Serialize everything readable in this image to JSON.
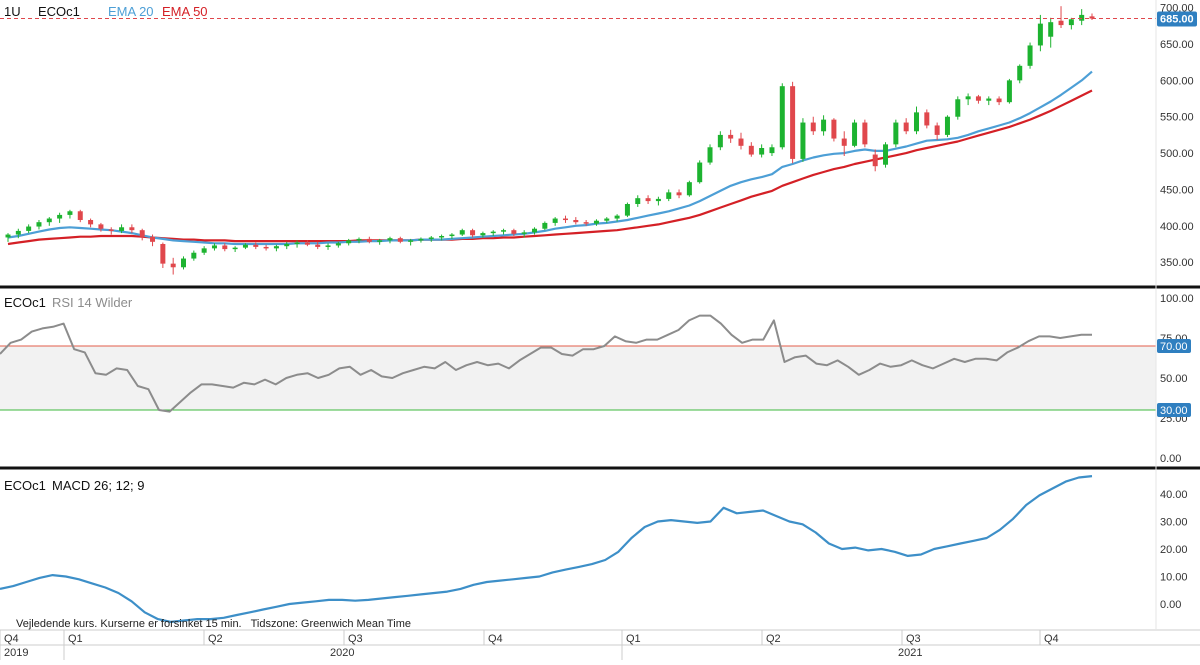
{
  "header": {
    "interval": "1U",
    "symbol": "ECOc1",
    "ema20_label": "EMA 20",
    "ema50_label": "EMA 50"
  },
  "colors": {
    "up": "#1db330",
    "down": "#e0474c",
    "ema20": "#4d9fd6",
    "ema50": "#d42026",
    "rsi_line": "#8c8c8c",
    "rsi_upper": "#e35d4b",
    "rsi_lower": "#3cb83c",
    "macd": "#3d8fc8",
    "price_badge": "#2f7fc0",
    "separator": "#111111"
  },
  "rsi_panel": {
    "symbol": "ECOc1",
    "title": "RSI 14 Wilder"
  },
  "macd_panel": {
    "symbol": "ECOc1",
    "title": "MACD 26; 12; 9"
  },
  "footer_note": "Vejledende kurs. Kurserne er forsinket 15 min.   Tidszone: Greenwich Mean Time",
  "time_axis": {
    "quarters": [
      "Q4",
      "Q1",
      "Q2",
      "Q3",
      "Q4",
      "Q1",
      "Q2",
      "Q3",
      "Q4"
    ],
    "years": [
      "2019",
      "2020",
      "2021"
    ]
  },
  "price_panel": {
    "current_price_label": "685.00",
    "current_price": 685,
    "y_ticks": [
      "350.00",
      "400.00",
      "450.00",
      "500.00",
      "550.00",
      "600.00",
      "650.00",
      "700.00"
    ]
  },
  "rsi_axis": {
    "ticks": [
      "0.00",
      "25.00",
      "50.00",
      "75.00",
      "100.00"
    ],
    "upper_label": "70.00",
    "lower_label": "30.00",
    "upper": 70,
    "lower": 30
  },
  "macd_axis": {
    "ticks": [
      "0.00",
      "10.00",
      "20.00",
      "30.00",
      "40.00"
    ]
  },
  "chart_data": [
    {
      "type": "candlestick",
      "interval": "1 week",
      "ylim": [
        320,
        705
      ],
      "candles": [
        {
          "o": 384,
          "h": 390,
          "l": 378,
          "c": 388
        },
        {
          "o": 388,
          "h": 396,
          "l": 383,
          "c": 393
        },
        {
          "o": 393,
          "h": 402,
          "l": 390,
          "c": 399
        },
        {
          "o": 399,
          "h": 408,
          "l": 395,
          "c": 405
        },
        {
          "o": 405,
          "h": 412,
          "l": 400,
          "c": 410
        },
        {
          "o": 410,
          "h": 418,
          "l": 404,
          "c": 415
        },
        {
          "o": 415,
          "h": 422,
          "l": 410,
          "c": 420
        },
        {
          "o": 420,
          "h": 422,
          "l": 405,
          "c": 408
        },
        {
          "o": 408,
          "h": 410,
          "l": 398,
          "c": 402
        },
        {
          "o": 402,
          "h": 404,
          "l": 392,
          "c": 396
        },
        {
          "o": 395,
          "h": 398,
          "l": 388,
          "c": 393
        },
        {
          "o": 393,
          "h": 402,
          "l": 390,
          "c": 398
        },
        {
          "o": 398,
          "h": 402,
          "l": 390,
          "c": 394
        },
        {
          "o": 394,
          "h": 396,
          "l": 380,
          "c": 385
        },
        {
          "o": 385,
          "h": 388,
          "l": 372,
          "c": 378
        },
        {
          "o": 375,
          "h": 377,
          "l": 342,
          "c": 348
        },
        {
          "o": 348,
          "h": 356,
          "l": 333,
          "c": 343
        },
        {
          "o": 343,
          "h": 358,
          "l": 340,
          "c": 355
        },
        {
          "o": 355,
          "h": 366,
          "l": 352,
          "c": 363
        },
        {
          "o": 363,
          "h": 372,
          "l": 360,
          "c": 369
        },
        {
          "o": 369,
          "h": 376,
          "l": 366,
          "c": 373
        },
        {
          "o": 373,
          "h": 376,
          "l": 365,
          "c": 368
        },
        {
          "o": 368,
          "h": 372,
          "l": 364,
          "c": 370
        },
        {
          "o": 370,
          "h": 376,
          "l": 368,
          "c": 374
        },
        {
          "o": 374,
          "h": 377,
          "l": 368,
          "c": 371
        },
        {
          "o": 371,
          "h": 374,
          "l": 366,
          "c": 369
        },
        {
          "o": 369,
          "h": 374,
          "l": 365,
          "c": 372
        },
        {
          "o": 372,
          "h": 378,
          "l": 368,
          "c": 375
        },
        {
          "o": 375,
          "h": 380,
          "l": 370,
          "c": 377
        },
        {
          "o": 377,
          "h": 380,
          "l": 372,
          "c": 374
        },
        {
          "o": 374,
          "h": 378,
          "l": 368,
          "c": 371
        },
        {
          "o": 371,
          "h": 376,
          "l": 367,
          "c": 373
        },
        {
          "o": 373,
          "h": 378,
          "l": 370,
          "c": 376
        },
        {
          "o": 376,
          "h": 382,
          "l": 373,
          "c": 380
        },
        {
          "o": 380,
          "h": 384,
          "l": 376,
          "c": 382
        },
        {
          "o": 382,
          "h": 385,
          "l": 376,
          "c": 378
        },
        {
          "o": 378,
          "h": 382,
          "l": 374,
          "c": 380
        },
        {
          "o": 380,
          "h": 385,
          "l": 376,
          "c": 383
        },
        {
          "o": 383,
          "h": 385,
          "l": 376,
          "c": 378
        },
        {
          "o": 378,
          "h": 382,
          "l": 373,
          "c": 380
        },
        {
          "o": 380,
          "h": 384,
          "l": 377,
          "c": 382
        },
        {
          "o": 382,
          "h": 386,
          "l": 378,
          "c": 384
        },
        {
          "o": 384,
          "h": 388,
          "l": 380,
          "c": 386
        },
        {
          "o": 386,
          "h": 390,
          "l": 382,
          "c": 388
        },
        {
          "o": 388,
          "h": 396,
          "l": 386,
          "c": 394
        },
        {
          "o": 394,
          "h": 396,
          "l": 384,
          "c": 387
        },
        {
          "o": 387,
          "h": 392,
          "l": 384,
          "c": 390
        },
        {
          "o": 390,
          "h": 394,
          "l": 386,
          "c": 392
        },
        {
          "o": 392,
          "h": 396,
          "l": 388,
          "c": 394
        },
        {
          "o": 394,
          "h": 396,
          "l": 386,
          "c": 389
        },
        {
          "o": 389,
          "h": 394,
          "l": 384,
          "c": 391
        },
        {
          "o": 391,
          "h": 398,
          "l": 388,
          "c": 396
        },
        {
          "o": 396,
          "h": 406,
          "l": 394,
          "c": 404
        },
        {
          "o": 404,
          "h": 412,
          "l": 400,
          "c": 410
        },
        {
          "o": 410,
          "h": 414,
          "l": 404,
          "c": 408
        },
        {
          "o": 408,
          "h": 412,
          "l": 402,
          "c": 405
        },
        {
          "o": 405,
          "h": 408,
          "l": 400,
          "c": 403
        },
        {
          "o": 403,
          "h": 409,
          "l": 400,
          "c": 407
        },
        {
          "o": 407,
          "h": 412,
          "l": 404,
          "c": 410
        },
        {
          "o": 410,
          "h": 416,
          "l": 406,
          "c": 414
        },
        {
          "o": 414,
          "h": 432,
          "l": 412,
          "c": 430
        },
        {
          "o": 430,
          "h": 442,
          "l": 426,
          "c": 438
        },
        {
          "o": 438,
          "h": 442,
          "l": 430,
          "c": 434
        },
        {
          "o": 434,
          "h": 440,
          "l": 428,
          "c": 437
        },
        {
          "o": 437,
          "h": 450,
          "l": 434,
          "c": 446
        },
        {
          "o": 446,
          "h": 450,
          "l": 438,
          "c": 442
        },
        {
          "o": 442,
          "h": 462,
          "l": 440,
          "c": 460
        },
        {
          "o": 460,
          "h": 490,
          "l": 458,
          "c": 487
        },
        {
          "o": 487,
          "h": 512,
          "l": 484,
          "c": 508
        },
        {
          "o": 508,
          "h": 530,
          "l": 504,
          "c": 525
        },
        {
          "o": 525,
          "h": 532,
          "l": 514,
          "c": 520
        },
        {
          "o": 520,
          "h": 528,
          "l": 505,
          "c": 510
        },
        {
          "o": 510,
          "h": 515,
          "l": 495,
          "c": 498
        },
        {
          "o": 498,
          "h": 512,
          "l": 494,
          "c": 507
        },
        {
          "o": 500,
          "h": 512,
          "l": 496,
          "c": 508
        },
        {
          "o": 508,
          "h": 596,
          "l": 505,
          "c": 592
        },
        {
          "o": 592,
          "h": 598,
          "l": 486,
          "c": 492
        },
        {
          "o": 492,
          "h": 548,
          "l": 488,
          "c": 542
        },
        {
          "o": 542,
          "h": 550,
          "l": 525,
          "c": 530
        },
        {
          "o": 530,
          "h": 552,
          "l": 524,
          "c": 546
        },
        {
          "o": 546,
          "h": 548,
          "l": 516,
          "c": 520
        },
        {
          "o": 520,
          "h": 530,
          "l": 496,
          "c": 510
        },
        {
          "o": 510,
          "h": 546,
          "l": 508,
          "c": 542
        },
        {
          "o": 542,
          "h": 546,
          "l": 508,
          "c": 512
        },
        {
          "o": 498,
          "h": 505,
          "l": 475,
          "c": 482
        },
        {
          "o": 484,
          "h": 515,
          "l": 480,
          "c": 512
        },
        {
          "o": 512,
          "h": 546,
          "l": 508,
          "c": 542
        },
        {
          "o": 542,
          "h": 548,
          "l": 526,
          "c": 530
        },
        {
          "o": 530,
          "h": 564,
          "l": 526,
          "c": 556
        },
        {
          "o": 556,
          "h": 560,
          "l": 534,
          "c": 538
        },
        {
          "o": 538,
          "h": 542,
          "l": 518,
          "c": 525
        },
        {
          "o": 525,
          "h": 552,
          "l": 522,
          "c": 550
        },
        {
          "o": 550,
          "h": 578,
          "l": 546,
          "c": 574
        },
        {
          "o": 574,
          "h": 582,
          "l": 566,
          "c": 578
        },
        {
          "o": 578,
          "h": 580,
          "l": 568,
          "c": 572
        },
        {
          "o": 572,
          "h": 578,
          "l": 566,
          "c": 575
        },
        {
          "o": 575,
          "h": 578,
          "l": 566,
          "c": 570
        },
        {
          "o": 570,
          "h": 602,
          "l": 568,
          "c": 600
        },
        {
          "o": 600,
          "h": 622,
          "l": 596,
          "c": 620
        },
        {
          "o": 620,
          "h": 652,
          "l": 616,
          "c": 648
        },
        {
          "o": 648,
          "h": 690,
          "l": 640,
          "c": 678
        },
        {
          "o": 660,
          "h": 686,
          "l": 645,
          "c": 680
        },
        {
          "o": 682,
          "h": 702,
          "l": 672,
          "c": 676
        },
        {
          "o": 676,
          "h": 686,
          "l": 670,
          "c": 684
        },
        {
          "o": 682,
          "h": 698,
          "l": 676,
          "c": 690
        },
        {
          "o": 688,
          "h": 692,
          "l": 683,
          "c": 685
        }
      ],
      "ema20": [
        384,
        386,
        389,
        392,
        395,
        397,
        398,
        397,
        396,
        395,
        394,
        392,
        390,
        387,
        384,
        382,
        380,
        379,
        378,
        377,
        376,
        376,
        375,
        375,
        375,
        375,
        375,
        375,
        376,
        376,
        376,
        377,
        377,
        378,
        378,
        379,
        379,
        380,
        380,
        380,
        381,
        381,
        381,
        382,
        383,
        384,
        385,
        386,
        387,
        388,
        389,
        391,
        393,
        396,
        398,
        400,
        401,
        403,
        404,
        406,
        408,
        411,
        414,
        417,
        420,
        424,
        428,
        434,
        441,
        448,
        455,
        460,
        464,
        467,
        471,
        481,
        485,
        490,
        494,
        497,
        499,
        500,
        503,
        505,
        503,
        503,
        506,
        509,
        513,
        517,
        518,
        519,
        521,
        525,
        530,
        534,
        538,
        542,
        548,
        555,
        563,
        571,
        580,
        590,
        600,
        612
      ],
      "ema50": [
        375,
        377,
        379,
        381,
        382,
        383,
        384,
        385,
        385,
        386,
        386,
        386,
        386,
        385,
        384,
        383,
        382,
        381,
        381,
        380,
        380,
        380,
        379,
        379,
        379,
        379,
        379,
        379,
        379,
        379,
        379,
        379,
        379,
        379,
        380,
        380,
        380,
        380,
        380,
        380,
        381,
        381,
        381,
        381,
        382,
        382,
        383,
        383,
        384,
        384,
        385,
        386,
        387,
        388,
        389,
        390,
        391,
        392,
        393,
        394,
        396,
        398,
        400,
        402,
        405,
        408,
        411,
        415,
        420,
        425,
        430,
        435,
        440,
        444,
        448,
        455,
        460,
        465,
        470,
        474,
        478,
        481,
        485,
        488,
        491,
        494,
        497,
        500,
        504,
        507,
        510,
        513,
        516,
        520,
        524,
        528,
        532,
        536,
        541,
        546,
        552,
        558,
        565,
        572,
        579,
        586
      ],
      "last_price": 685
    },
    {
      "type": "line",
      "title": "RSI 14 Wilder",
      "ylim": [
        0,
        100
      ],
      "upper_band": 70,
      "lower_band": 30,
      "values": [
        65,
        72,
        74,
        79,
        81,
        82,
        84,
        68,
        66,
        53,
        52,
        56,
        55,
        45,
        43,
        30,
        29,
        35,
        41,
        46,
        46,
        45,
        44,
        47,
        46,
        49,
        46,
        50,
        52,
        53,
        50,
        52,
        56,
        57,
        52,
        55,
        51,
        50,
        53,
        55,
        57,
        56,
        60,
        55,
        58,
        60,
        58,
        59,
        56,
        61,
        65,
        69,
        69,
        65,
        64,
        68,
        68,
        70,
        76,
        73,
        72,
        74,
        74,
        77,
        80,
        86,
        89,
        89,
        84,
        77,
        72,
        74,
        74,
        86,
        60,
        63,
        64,
        59,
        58,
        61,
        57,
        52,
        55,
        59,
        57,
        58,
        61,
        58,
        56,
        59,
        62,
        60,
        62,
        62,
        61,
        66,
        69,
        73,
        76,
        76,
        75,
        76,
        77,
        77
      ],
      "x_index_start": 0
    },
    {
      "type": "line",
      "title": "MACD 26; 12; 9",
      "ylim": [
        -8,
        48
      ],
      "values": [
        5.5,
        6.5,
        8,
        9.5,
        10.5,
        10,
        9,
        7.5,
        6,
        4,
        1,
        -3,
        -5.5,
        -6.5,
        -6,
        -5.5,
        -5.5,
        -5,
        -4,
        -3,
        -2,
        -1,
        0,
        0.5,
        1,
        1.5,
        1.5,
        1.2,
        1.5,
        2,
        2.5,
        3,
        3.5,
        4,
        4.5,
        5.5,
        7,
        8,
        8.5,
        9,
        9.5,
        10,
        11.5,
        12.5,
        13.5,
        14.5,
        16,
        19,
        24,
        28,
        30,
        30.5,
        30,
        29.5,
        30,
        35,
        33,
        33.5,
        34,
        32,
        30,
        29,
        26,
        22,
        20,
        20.5,
        19.5,
        20,
        19,
        17.5,
        18,
        20,
        21,
        22,
        23,
        24,
        27,
        31,
        36,
        39.5,
        42,
        44.5,
        46,
        46.5
      ],
      "x_index_start": 0
    }
  ]
}
